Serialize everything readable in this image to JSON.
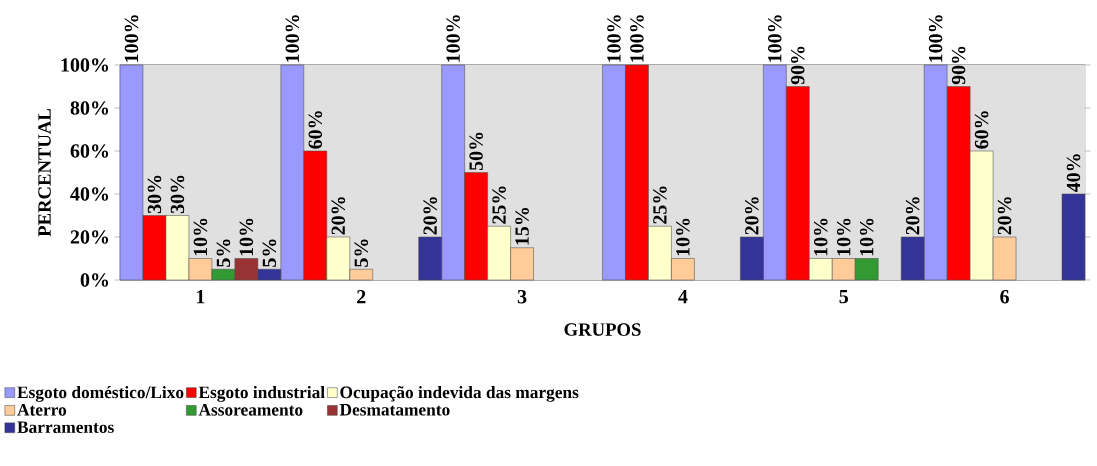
{
  "chart_data": {
    "type": "bar",
    "xlabel": "GRUPOS",
    "ylabel": "PERCENTUAL",
    "categories": [
      "1",
      "2",
      "3",
      "4",
      "5",
      "6"
    ],
    "series": [
      {
        "name": "Esgoto doméstico/Lixo",
        "color": "#9999ff",
        "values": [
          100,
          100,
          100,
          100,
          100,
          100
        ],
        "value_labels": [
          "100%",
          "100%",
          "100%",
          "100%",
          "100%",
          "100%"
        ]
      },
      {
        "name": "Esgoto industrial",
        "color": "#ff0000",
        "values": [
          30,
          60,
          50,
          100,
          90,
          90
        ],
        "value_labels": [
          "30%",
          "60%",
          "50%",
          "100%",
          "90%",
          "90%"
        ]
      },
      {
        "name": "Ocupação indevida das margens",
        "color": "#ffffcc",
        "values": [
          30,
          20,
          25,
          25,
          10,
          60
        ],
        "value_labels": [
          "30%",
          "20%",
          "25%",
          "25%",
          "10%",
          "60%"
        ]
      },
      {
        "name": "Aterro",
        "color": "#ffcc99",
        "values": [
          10,
          5,
          15,
          10,
          10,
          20
        ],
        "value_labels": [
          "10%",
          "5%",
          "15%",
          "10%",
          "10%",
          "20%"
        ]
      },
      {
        "name": "Assoreamento",
        "color": "#339933",
        "values": [
          5,
          null,
          null,
          null,
          10,
          null
        ],
        "value_labels": [
          "5%",
          null,
          null,
          null,
          "10%",
          null
        ]
      },
      {
        "name": "Desmatamento",
        "color": "#993333",
        "values": [
          10,
          null,
          null,
          null,
          null,
          null
        ],
        "value_labels": [
          "10%",
          null,
          null,
          null,
          null,
          null
        ]
      },
      {
        "name": "Barramentos",
        "color": "#333399",
        "values": [
          5,
          20,
          null,
          20,
          20,
          40
        ],
        "value_labels": [
          "5%",
          "20%",
          null,
          "20%",
          "20%",
          "40%"
        ]
      }
    ],
    "ylim": [
      0,
      100
    ],
    "yticks": [
      {
        "value": 0,
        "label": "0%"
      },
      {
        "value": 20,
        "label": "20%"
      },
      {
        "value": 40,
        "label": "40%"
      },
      {
        "value": 60,
        "label": "60%"
      },
      {
        "value": 80,
        "label": "80%"
      },
      {
        "value": 100,
        "label": "100%"
      }
    ],
    "grid": "y",
    "legend": "bottom"
  }
}
